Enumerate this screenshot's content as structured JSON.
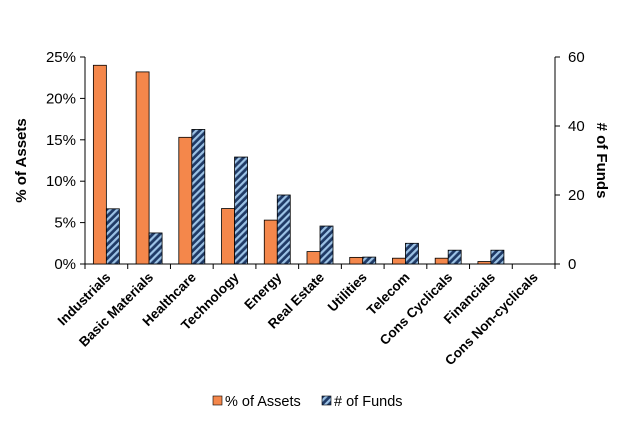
{
  "chart_data": {
    "type": "bar",
    "categories": [
      "Industrials",
      "Basic Materials",
      "Healthcare",
      "Technology",
      "Energy",
      "Real Estate",
      "Utilities",
      "Telecom",
      "Cons Cyclicals",
      "Financials",
      "Cons Non-cyclicals"
    ],
    "series": [
      {
        "name": "% of Assets",
        "axis": "left",
        "color": "#F4874B",
        "values": [
          24.0,
          23.2,
          15.3,
          6.7,
          5.3,
          1.5,
          0.8,
          0.7,
          0.7,
          0.3,
          0.0
        ]
      },
      {
        "name": "# of Funds",
        "axis": "right",
        "color": "#1F3A66",
        "hatch_color": "#9DC3E6",
        "values": [
          16,
          9,
          39,
          31,
          20,
          11,
          2,
          6,
          4,
          4,
          0
        ]
      }
    ],
    "ylabel": "% of Assets",
    "y2label": "# of Funds",
    "ylim": [
      0,
      25
    ],
    "y2lim": [
      0,
      60
    ],
    "yticks": [
      "0%",
      "5%",
      "10%",
      "15%",
      "20%",
      "25%"
    ],
    "y2ticks": [
      "0",
      "20",
      "40",
      "60"
    ],
    "legend": "bottom",
    "grid": false
  }
}
